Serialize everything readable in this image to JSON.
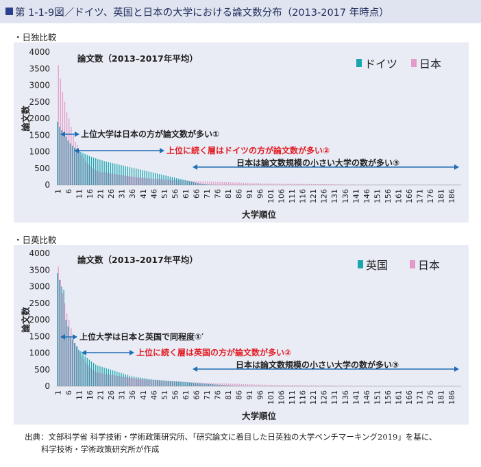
{
  "header": {
    "title": "第 1-1-9図／ドイツ、英国と日本の大学における論文数分布（2013-2017 年時点）"
  },
  "colors": {
    "header_bg": "#dfe4f0",
    "header_square": "#2c3f8f",
    "panel_bg": "#e9ecf5",
    "germany_uk": "#1aa6b0",
    "japan": "#e39ac8",
    "arrow": "#1f6db5",
    "red_text": "#e31b23"
  },
  "source": {
    "line1": "出典：文部科学省 科学技術・学術政策研究所、「研究論文に着目した日英独の大学ベンチマーキング2019」を基に、",
    "line2": "科学技術・学術政策研究所が作成"
  },
  "chart_data": [
    {
      "type": "bar",
      "panel_label": "・日独比較",
      "title": "論文数（2013–2017年平均）",
      "xlabel": "大学順位",
      "ylabel": "論文数",
      "ylim": [
        0,
        4000
      ],
      "yticks": [
        "4000",
        "3500",
        "3000",
        "2500",
        "2000",
        "1500",
        "1000",
        "500",
        "0"
      ],
      "xticks": [
        "1",
        "6",
        "11",
        "16",
        "21",
        "26",
        "31",
        "36",
        "41",
        "46",
        "51",
        "56",
        "61",
        "66",
        "71",
        "76",
        "81",
        "86",
        "91",
        "96",
        "101",
        "106",
        "111",
        "116",
        "121",
        "126",
        "131",
        "136",
        "141",
        "146",
        "151",
        "156",
        "161",
        "166",
        "171",
        "176",
        "181",
        "186"
      ],
      "series": [
        {
          "name": "ドイツ",
          "values": [
            1900,
            1750,
            1650,
            1550,
            1450,
            1330,
            1250,
            1180,
            1120,
            1070,
            1030,
            990,
            960,
            930,
            900,
            870,
            845,
            820,
            800,
            780,
            760,
            740,
            720,
            700,
            685,
            670,
            655,
            640,
            625,
            610,
            595,
            580,
            565,
            550,
            535,
            520,
            505,
            490,
            475,
            460,
            445,
            430,
            415,
            400,
            385,
            370,
            355,
            340,
            325,
            310,
            295,
            280,
            265,
            250,
            235,
            220,
            205,
            190,
            175,
            160,
            145,
            130,
            115,
            100,
            85,
            70,
            55,
            40,
            28,
            20,
            14,
            10,
            7,
            5,
            3
          ]
        },
        {
          "name": "日本",
          "values": [
            3600,
            3200,
            2800,
            2500,
            2200,
            2000,
            1750,
            1500,
            1300,
            1200,
            1050,
            900,
            800,
            700,
            620,
            560,
            500,
            460,
            430,
            400,
            390,
            380,
            370,
            360,
            350,
            340,
            330,
            320,
            310,
            300,
            290,
            280,
            270,
            260,
            250,
            240,
            230,
            225,
            220,
            215,
            210,
            205,
            200,
            195,
            190,
            185,
            180,
            175,
            170,
            165,
            160,
            157,
            154,
            151,
            148,
            145,
            142,
            139,
            136,
            133,
            130,
            127,
            124,
            121,
            118,
            115,
            112,
            109,
            106,
            103,
            100,
            98,
            96,
            94,
            92,
            90,
            88,
            86,
            84,
            82,
            80,
            78,
            76,
            74,
            72,
            70,
            68,
            66,
            64,
            62,
            60,
            58,
            56,
            54,
            52,
            50,
            49,
            48,
            47,
            46,
            45,
            44,
            43,
            42,
            41,
            40,
            39,
            38,
            37,
            36,
            35,
            34,
            33,
            32,
            31,
            30,
            29,
            28,
            27,
            26,
            25,
            24,
            23,
            22,
            21,
            20,
            19,
            18,
            17,
            16,
            15,
            14,
            13,
            12,
            11,
            10,
            9,
            8,
            7,
            6,
            5,
            5,
            4,
            4,
            3,
            3,
            2,
            2,
            1,
            1
          ]
        }
      ],
      "annotations": [
        {
          "text": "上位大学は日本の方が論文数が多い①",
          "color": "#222222"
        },
        {
          "text": "上位に続く層はドイツの方が論文数が多い②",
          "color": "#e31b23"
        },
        {
          "text": "日本は論文数規模の小さい大学の数が多い③",
          "color": "#222222"
        }
      ]
    },
    {
      "type": "bar",
      "panel_label": "・日英比較",
      "title": "論文数（2013–2017年平均）",
      "xlabel": "大学順位",
      "ylabel": "論文数",
      "ylim": [
        0,
        4000
      ],
      "yticks": [
        "4000",
        "3500",
        "3000",
        "2500",
        "2000",
        "1500",
        "1000",
        "500",
        "0"
      ],
      "xticks": [
        "1",
        "6",
        "11",
        "16",
        "21",
        "26",
        "31",
        "36",
        "41",
        "46",
        "51",
        "56",
        "61",
        "66",
        "71",
        "76",
        "81",
        "86",
        "91",
        "96",
        "101",
        "106",
        "111",
        "116",
        "121",
        "126",
        "131",
        "136",
        "141",
        "146",
        "151",
        "156",
        "161",
        "166",
        "171",
        "176",
        "181",
        "186"
      ],
      "series": [
        {
          "name": "英国",
          "values": [
            3400,
            3200,
            3000,
            2900,
            2000,
            1800,
            1500,
            1400,
            1300,
            1200,
            1100,
            1050,
            1000,
            900,
            850,
            800,
            750,
            700,
            650,
            620,
            600,
            580,
            560,
            540,
            520,
            500,
            480,
            460,
            440,
            420,
            400,
            380,
            360,
            340,
            320,
            300,
            290,
            280,
            270,
            260,
            250,
            240,
            230,
            220,
            210,
            200,
            195,
            190,
            185,
            180,
            175,
            170,
            165,
            160,
            155,
            150,
            145,
            140,
            135,
            130,
            125,
            120,
            115,
            110,
            105,
            100,
            95,
            90,
            85,
            80,
            75,
            70,
            65,
            60,
            55,
            50,
            45,
            40,
            35,
            30,
            26,
            22,
            18,
            15,
            12,
            10,
            8,
            6,
            5,
            4,
            3,
            2,
            2,
            1,
            1,
            1,
            1,
            1,
            1,
            1,
            1,
            1,
            1,
            1,
            1,
            1,
            1,
            1
          ]
        },
        {
          "name": "日本",
          "values": [
            3600,
            3200,
            2800,
            2500,
            2200,
            2000,
            1750,
            1500,
            1300,
            1200,
            1050,
            900,
            800,
            700,
            620,
            560,
            500,
            460,
            430,
            400,
            390,
            380,
            370,
            360,
            350,
            340,
            330,
            320,
            310,
            300,
            290,
            280,
            270,
            260,
            250,
            240,
            230,
            225,
            220,
            215,
            210,
            205,
            200,
            195,
            190,
            185,
            180,
            175,
            170,
            165,
            160,
            157,
            154,
            151,
            148,
            145,
            142,
            139,
            136,
            133,
            130,
            127,
            124,
            121,
            118,
            115,
            112,
            109,
            106,
            103,
            100,
            98,
            96,
            94,
            92,
            90,
            88,
            86,
            84,
            82,
            80,
            78,
            76,
            74,
            72,
            70,
            68,
            66,
            64,
            62,
            60,
            58,
            56,
            54,
            52,
            50,
            49,
            48,
            47,
            46,
            45,
            44,
            43,
            42,
            41,
            40,
            39,
            38,
            37,
            36,
            35,
            34,
            33,
            32,
            31,
            30,
            29,
            28,
            27,
            26,
            25,
            24,
            23,
            22,
            21,
            20,
            19,
            18,
            17,
            16,
            15,
            14,
            13,
            12,
            11,
            10,
            9,
            8,
            7,
            6,
            5,
            5,
            4,
            4,
            3,
            3,
            2,
            2,
            1,
            1
          ]
        }
      ],
      "annotations": [
        {
          "text": "上位大学は日本と英国で同程度①′",
          "color": "#222222"
        },
        {
          "text": "上位に続く層は英国の方が論文数が多い②",
          "color": "#e31b23"
        },
        {
          "text": "日本は論文数規模の小さい大学の数が多い③",
          "color": "#222222"
        }
      ]
    }
  ]
}
